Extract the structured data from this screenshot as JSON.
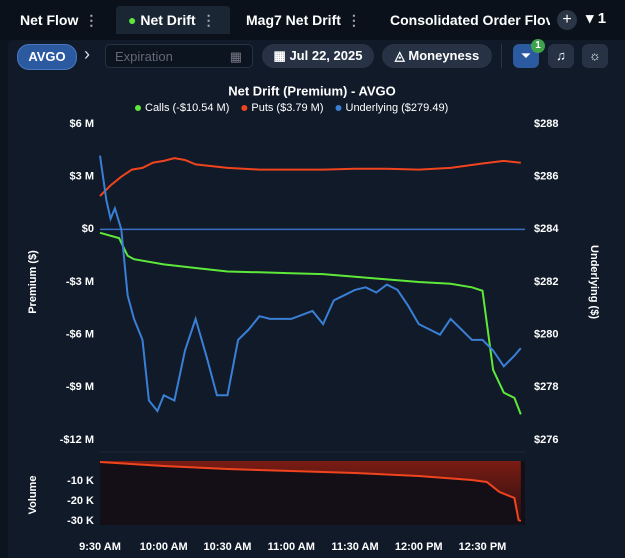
{
  "tabs": [
    {
      "label": "Net Flow"
    },
    {
      "label": "Net Drift"
    },
    {
      "label": "Mag7 Net Drift"
    },
    {
      "label": "Consolidated Order Flov"
    }
  ],
  "tab_count": "1",
  "toolbar": {
    "symbol": "AVGO",
    "expiration_placeholder": "Expiration",
    "date": "Jul 22, 2025",
    "moneyness": "Moneyness",
    "filter_badge": "1"
  },
  "chart_data": [
    {
      "type": "line",
      "title": "Net Drift (Premium) - AVGO",
      "y_label": "Premium ($)",
      "y2_label": "Underlying ($)",
      "xlim": [
        0,
        200
      ],
      "ylim": [
        -12000000,
        6000000
      ],
      "yticks": [
        {
          "value": 6000000,
          "label": "$6 M"
        },
        {
          "value": 3000000,
          "label": "$3 M"
        },
        {
          "value": 0,
          "label": "$0"
        },
        {
          "value": -3000000,
          "label": "-$3 M"
        },
        {
          "value": -6000000,
          "label": "-$6 M"
        },
        {
          "value": -9000000,
          "label": "-$9 M"
        },
        {
          "value": -12000000,
          "label": "-$12 M"
        }
      ],
      "y2lim": [
        276,
        288
      ],
      "y2ticks": [
        {
          "value": 288,
          "label": "$288"
        },
        {
          "value": 286,
          "label": "$286"
        },
        {
          "value": 284,
          "label": "$284"
        },
        {
          "value": 282,
          "label": "$282"
        },
        {
          "value": 280,
          "label": "$280"
        },
        {
          "value": 278,
          "label": "$278"
        },
        {
          "value": 276,
          "label": "$276"
        }
      ],
      "zero_line_color": "#3b6fc4",
      "series": [
        {
          "name": "Calls (-$10.54 M)",
          "color": "#5ee83a",
          "x": [
            0,
            9,
            13,
            16,
            30,
            45,
            60,
            75,
            90,
            105,
            120,
            135,
            150,
            165,
            175,
            180,
            185,
            190,
            195,
            198
          ],
          "values": [
            -200000,
            -500000,
            -1500000,
            -1700000,
            -2000000,
            -2200000,
            -2400000,
            -2450000,
            -2500000,
            -2550000,
            -2700000,
            -2850000,
            -3000000,
            -3100000,
            -3300000,
            -3500000,
            -8000000,
            -9300000,
            -9600000,
            -10540000
          ]
        },
        {
          "name": "Puts ($3.79 M)",
          "color": "#f0441f",
          "x": [
            0,
            5,
            10,
            15,
            20,
            25,
            30,
            35,
            40,
            45,
            60,
            75,
            90,
            105,
            120,
            135,
            150,
            165,
            180,
            190,
            198
          ],
          "values": [
            1900000,
            2500000,
            3000000,
            3400000,
            3500000,
            3800000,
            3900000,
            4050000,
            3950000,
            3700000,
            3500000,
            3400000,
            3400000,
            3400000,
            3450000,
            3450000,
            3400000,
            3500000,
            3750000,
            3900000,
            3790000
          ]
        },
        {
          "name": "Underlying ($279.49)",
          "color": "#3a7fd6",
          "axis": "y2",
          "x": [
            0,
            3,
            5,
            7,
            10,
            13,
            16,
            20,
            23,
            27,
            30,
            35,
            40,
            45,
            50,
            55,
            60,
            65,
            70,
            75,
            80,
            90,
            100,
            105,
            110,
            115,
            120,
            125,
            130,
            135,
            140,
            145,
            150,
            155,
            160,
            165,
            170,
            175,
            180,
            185,
            190,
            195,
            198
          ],
          "values": [
            286.8,
            285.1,
            284.4,
            284.8,
            284.0,
            281.5,
            280.6,
            279.8,
            277.5,
            277.1,
            277.7,
            277.5,
            279.4,
            280.6,
            279.2,
            277.7,
            277.7,
            279.8,
            280.2,
            280.7,
            280.6,
            280.6,
            280.9,
            280.4,
            281.3,
            281.5,
            281.7,
            281.8,
            281.6,
            281.9,
            281.7,
            281.1,
            280.4,
            280.2,
            280.0,
            280.6,
            280.2,
            279.8,
            279.8,
            279.4,
            278.8,
            279.2,
            279.49
          ]
        }
      ]
    },
    {
      "type": "area",
      "y_label": "Volume",
      "xlim": [
        0,
        200
      ],
      "ylim": [
        -32000,
        0
      ],
      "yticks": [
        {
          "value": -10000,
          "label": "-10 K"
        },
        {
          "value": -20000,
          "label": "-20 K"
        },
        {
          "value": -30000,
          "label": "-30 K"
        }
      ],
      "xticks": [
        {
          "value": 0,
          "label": "9:30 AM"
        },
        {
          "value": 30,
          "label": "10:00 AM"
        },
        {
          "value": 60,
          "label": "10:30 AM"
        },
        {
          "value": 90,
          "label": "11:00 AM"
        },
        {
          "value": 120,
          "label": "11:30 AM"
        },
        {
          "value": 150,
          "label": "12:00 PM"
        },
        {
          "value": 180,
          "label": "12:30 PM"
        }
      ],
      "series": [
        {
          "color": "#f0441f",
          "x": [
            0,
            30,
            60,
            90,
            120,
            150,
            175,
            182,
            188,
            195,
            197,
            198
          ],
          "values": [
            -500,
            -2500,
            -4000,
            -5000,
            -6000,
            -7500,
            -9500,
            -10500,
            -15500,
            -18500,
            -29500,
            -30000
          ]
        }
      ]
    }
  ]
}
